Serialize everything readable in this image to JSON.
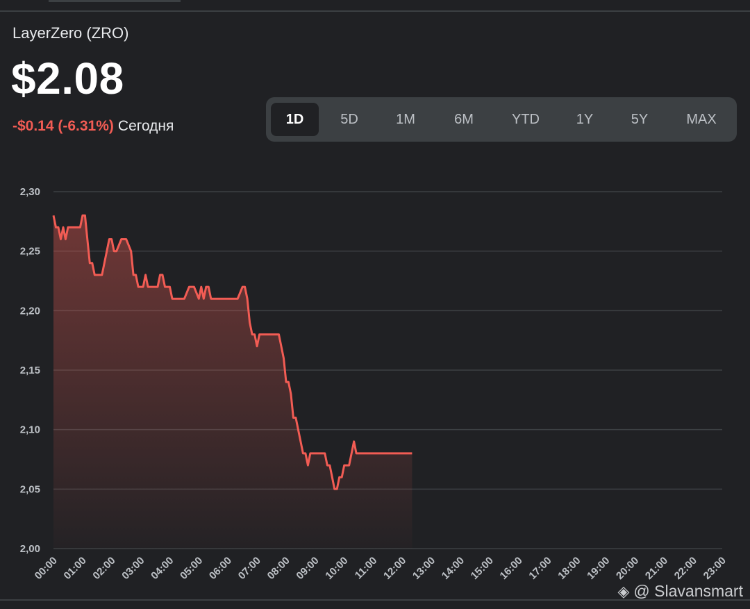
{
  "header": {
    "title": "LayerZero (ZRO)",
    "price": "$2.08",
    "change": "-$0.14 (-6.31%)",
    "period": "Сегодня"
  },
  "ranges": {
    "items": [
      "1D",
      "5D",
      "1M",
      "6M",
      "YTD",
      "1Y",
      "5Y",
      "MAX"
    ],
    "selected": "1D"
  },
  "colors": {
    "line": "#f25c54",
    "negative": "#f25c54",
    "background": "#202124",
    "grid": "#3c4043"
  },
  "watermark": "@ Slavansmart",
  "chart_data": {
    "type": "area",
    "title": "",
    "xlabel": "",
    "ylabel": "",
    "ylim": [
      2.0,
      2.3
    ],
    "yticks": [
      "2,30",
      "2,25",
      "2,20",
      "2,15",
      "2,10",
      "2,05",
      "2,00"
    ],
    "xticks": [
      "00:00",
      "01:00",
      "02:00",
      "03:00",
      "04:00",
      "05:00",
      "06:00",
      "07:00",
      "08:00",
      "09:00",
      "10:00",
      "11:00",
      "12:00",
      "13:00",
      "14:00",
      "15:00",
      "16:00",
      "17:00",
      "18:00",
      "19:00",
      "20:00",
      "21:00",
      "22:00",
      "23:00"
    ],
    "grid": true,
    "series": [
      {
        "x": [
          "00:00",
          "00:05",
          "00:10",
          "00:15",
          "00:20",
          "00:25",
          "00:30",
          "00:35",
          "00:45",
          "00:55",
          "01:00",
          "01:05",
          "01:10",
          "01:15",
          "01:20",
          "01:25",
          "01:30",
          "01:35",
          "01:40",
          "01:45",
          "01:55",
          "02:00",
          "02:05",
          "02:10",
          "02:20",
          "02:30",
          "02:40",
          "02:45",
          "02:50",
          "02:55",
          "03:00",
          "03:05",
          "03:10",
          "03:15",
          "03:20",
          "03:25",
          "03:30",
          "03:35",
          "03:40",
          "03:45",
          "03:50",
          "03:55",
          "04:00",
          "04:05",
          "04:10",
          "04:15",
          "04:20",
          "04:25",
          "04:30",
          "04:40",
          "04:50",
          "05:00",
          "05:05",
          "05:10",
          "05:15",
          "05:20",
          "05:25",
          "05:30",
          "05:40",
          "05:45",
          "05:50",
          "06:00",
          "06:10",
          "06:20",
          "06:30",
          "06:35",
          "06:40",
          "06:45",
          "06:50",
          "06:55",
          "07:00",
          "07:05",
          "07:10",
          "07:15",
          "07:25",
          "07:35",
          "07:45",
          "07:55",
          "08:00",
          "08:05",
          "08:10",
          "08:15",
          "08:20",
          "08:25",
          "08:30",
          "08:35",
          "08:40",
          "08:45",
          "08:50",
          "09:00",
          "09:10",
          "09:15",
          "09:20",
          "09:25",
          "09:30",
          "09:35",
          "09:40",
          "09:45",
          "09:50",
          "09:55",
          "10:00",
          "10:05",
          "10:10",
          "10:15",
          "10:20",
          "10:25",
          "10:30",
          "10:35",
          "10:40",
          "10:45",
          "10:50",
          "10:55",
          "11:00",
          "11:05",
          "11:10",
          "11:15",
          "11:20",
          "11:25",
          "11:30",
          "11:35",
          "11:40",
          "11:45",
          "11:50",
          "11:55",
          "12:00",
          "12:05",
          "12:10",
          "12:15",
          "12:20"
        ],
        "values": [
          2.28,
          2.27,
          2.27,
          2.26,
          2.27,
          2.26,
          2.27,
          2.27,
          2.27,
          2.27,
          2.28,
          2.28,
          2.26,
          2.24,
          2.24,
          2.23,
          2.23,
          2.23,
          2.23,
          2.24,
          2.26,
          2.26,
          2.25,
          2.25,
          2.26,
          2.26,
          2.25,
          2.23,
          2.23,
          2.22,
          2.22,
          2.22,
          2.23,
          2.22,
          2.22,
          2.22,
          2.22,
          2.22,
          2.23,
          2.23,
          2.22,
          2.22,
          2.22,
          2.21,
          2.21,
          2.21,
          2.21,
          2.21,
          2.21,
          2.22,
          2.22,
          2.21,
          2.22,
          2.21,
          2.22,
          2.22,
          2.21,
          2.21,
          2.21,
          2.21,
          2.21,
          2.21,
          2.21,
          2.21,
          2.22,
          2.22,
          2.21,
          2.19,
          2.18,
          2.18,
          2.17,
          2.18,
          2.18,
          2.18,
          2.18,
          2.18,
          2.18,
          2.16,
          2.14,
          2.14,
          2.13,
          2.11,
          2.11,
          2.1,
          2.09,
          2.08,
          2.08,
          2.07,
          2.08,
          2.08,
          2.08,
          2.08,
          2.08,
          2.07,
          2.07,
          2.06,
          2.05,
          2.05,
          2.06,
          2.06,
          2.07,
          2.07,
          2.07,
          2.08,
          2.09,
          2.08,
          2.08,
          2.08,
          2.08,
          2.08,
          2.08,
          2.08,
          2.08,
          2.08,
          2.08,
          2.08,
          2.08,
          2.08,
          2.08,
          2.08,
          2.08,
          2.08,
          2.08,
          2.08,
          2.08,
          2.08,
          2.08,
          2.08,
          2.08
        ]
      }
    ]
  }
}
